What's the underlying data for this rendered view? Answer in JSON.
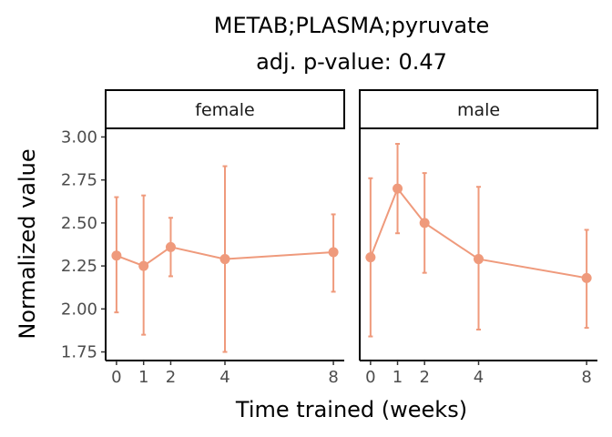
{
  "chart_data": {
    "type": "line",
    "title": [
      "METAB;PLASMA;pyruvate",
      "adj. p-value: 0.47"
    ],
    "xlabel": "Time trained (weeks)",
    "ylabel": "Normalized value",
    "xlim": [
      -0.4,
      8.4
    ],
    "ylim": [
      1.7,
      3.05
    ],
    "x_ticks": [
      0,
      1,
      2,
      4,
      8
    ],
    "y_ticks": [
      1.75,
      2.0,
      2.25,
      2.5,
      2.75,
      3.0
    ],
    "y_tick_labels": [
      "1.75",
      "2.00",
      "2.25",
      "2.50",
      "2.75",
      "3.00"
    ],
    "grid": false,
    "color": "#ef9a7c",
    "panels": [
      {
        "facet": "female",
        "x": [
          0,
          1,
          2,
          4,
          8
        ],
        "y": [
          2.31,
          2.25,
          2.36,
          2.29,
          2.33
        ],
        "ymin": [
          1.98,
          1.85,
          2.19,
          1.75,
          2.1
        ],
        "ymax": [
          2.65,
          2.66,
          2.53,
          2.83,
          2.55
        ]
      },
      {
        "facet": "male",
        "x": [
          0,
          1,
          2,
          4,
          8
        ],
        "y": [
          2.3,
          2.7,
          2.5,
          2.29,
          2.18
        ],
        "ymin": [
          1.84,
          2.44,
          2.21,
          1.88,
          1.89
        ],
        "ymax": [
          2.76,
          2.96,
          2.79,
          2.71,
          2.46
        ]
      }
    ]
  }
}
